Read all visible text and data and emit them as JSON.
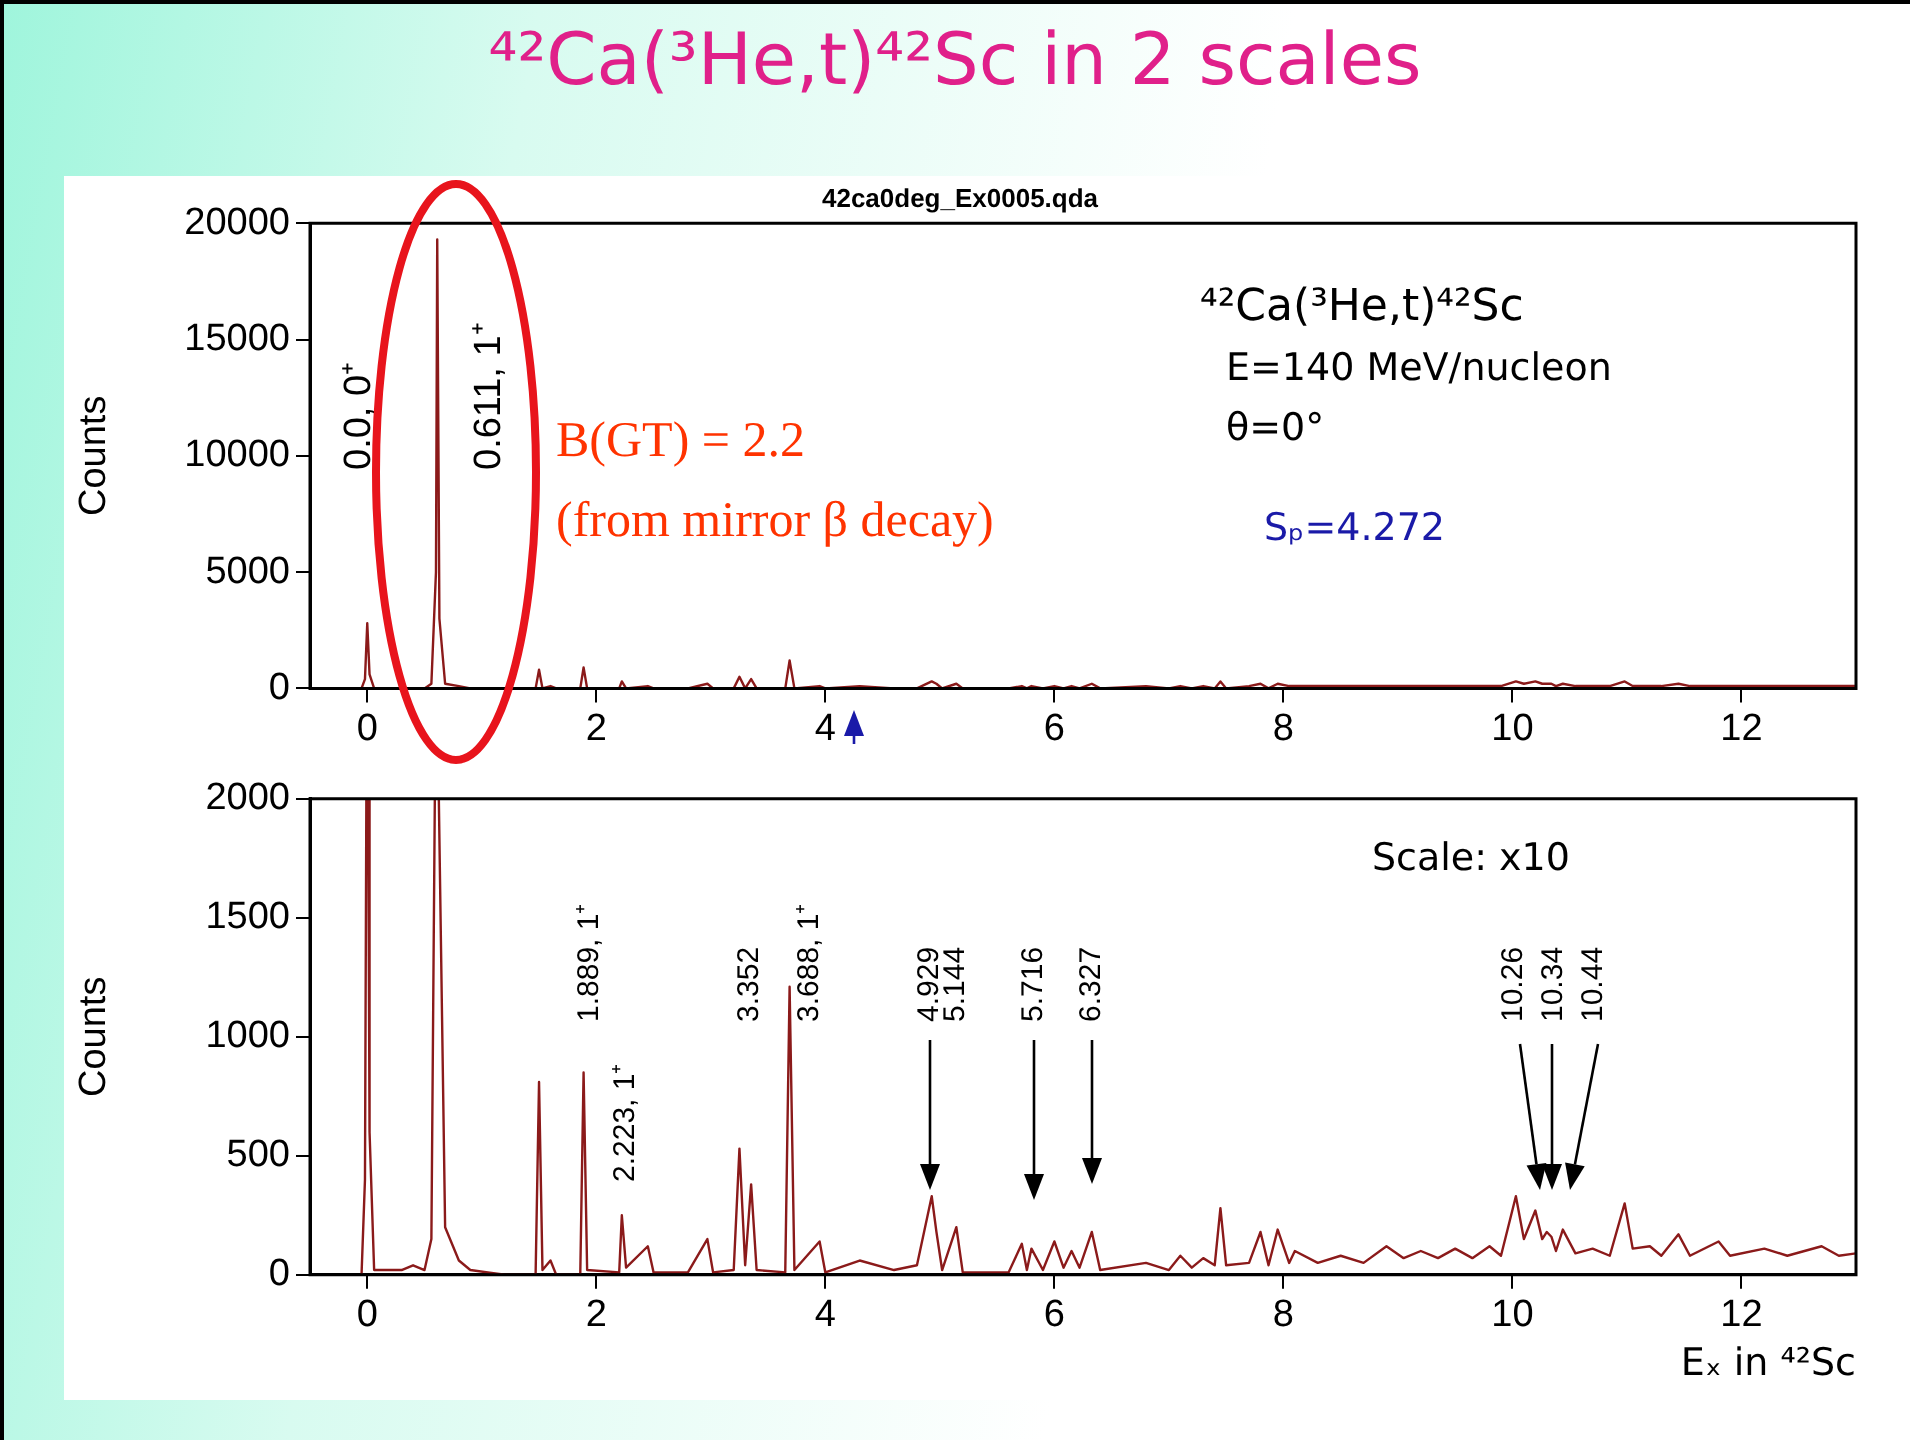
{
  "chart_data": [
    {
      "type": "line",
      "title": "⁴²Ca(³He,t)⁴²Sc in 2 scales",
      "subtitle": "42ca0deg_Ex0005.qda",
      "ylabel": "Counts",
      "xlim": [
        -0.5,
        13
      ],
      "xticks": [
        0,
        2,
        4,
        6,
        8,
        10,
        12
      ],
      "ylim": [
        0,
        20000
      ],
      "yticks": [
        0,
        5000,
        10000,
        15000,
        20000
      ],
      "series": [
        {
          "color": "#8b1a1a",
          "x": [
            -0.05,
            -0.02,
            0,
            0.02,
            0.06,
            0.3,
            0.4,
            0.5,
            0.56,
            0.6,
            0.611,
            0.63,
            0.68,
            0.8,
            0.9,
            1.2,
            1.47,
            1.5,
            1.53,
            1.6,
            1.65,
            1.86,
            1.889,
            1.92,
            2.2,
            2.223,
            2.26,
            2.45,
            2.5,
            2.8,
            2.97,
            3.02,
            3.2,
            3.25,
            3.3,
            3.352,
            3.4,
            3.65,
            3.688,
            3.73,
            3.95,
            4.0,
            4.3,
            4.6,
            4.8,
            4.929,
            4.97,
            5.02,
            5.144,
            5.2,
            5.6,
            5.716,
            5.76,
            5.8,
            5.9,
            6.0,
            6.08,
            6.15,
            6.22,
            6.327,
            6.4,
            6.8,
            7.0,
            7.1,
            7.2,
            7.3,
            7.4,
            7.45,
            7.5,
            7.7,
            7.8,
            7.87,
            7.95,
            8.05,
            8.1,
            8.3,
            8.5,
            8.7,
            8.9,
            9.05,
            9.2,
            9.35,
            9.5,
            9.65,
            9.8,
            9.9,
            10.03,
            10.1,
            10.2,
            10.26,
            10.3,
            10.34,
            10.38,
            10.44,
            10.55,
            10.7,
            10.85,
            10.98,
            11.05,
            11.2,
            11.3,
            11.45,
            11.55,
            11.8,
            11.9,
            12.2,
            12.4,
            12.7,
            12.85,
            13
          ],
          "values": [
            0,
            400,
            2800,
            600,
            0,
            0,
            0,
            0,
            200,
            5000,
            19300,
            3000,
            200,
            100,
            0,
            0,
            0,
            800,
            0,
            100,
            0,
            0,
            900,
            0,
            0,
            300,
            0,
            100,
            0,
            0,
            200,
            0,
            0,
            500,
            0,
            400,
            0,
            0,
            1200,
            0,
            100,
            0,
            100,
            0,
            0,
            300,
            200,
            0,
            200,
            0,
            0,
            100,
            0,
            100,
            0,
            100,
            0,
            100,
            0,
            200,
            0,
            100,
            0,
            100,
            0,
            100,
            0,
            300,
            0,
            100,
            200,
            0,
            200,
            100,
            100,
            100,
            100,
            100,
            100,
            100,
            100,
            100,
            100,
            100,
            100,
            100,
            300,
            200,
            300,
            200,
            200,
            200,
            100,
            200,
            100,
            100,
            100,
            300,
            100,
            100,
            100,
            200,
            100,
            100,
            100,
            100,
            100,
            100,
            100,
            100
          ]
        }
      ],
      "annotations": [
        "⁴²Ca(³He,t)⁴²Sc",
        "E=140 MeV/nucleon",
        "θ=0°",
        "B(GT) = 2.2",
        "(from mirror β decay)",
        "Sₚ=4.272",
        "0.0, 0⁺",
        "0.611, 1⁺"
      ]
    },
    {
      "type": "line",
      "xlabel": "Eₓ in ⁴²Sc",
      "ylabel": "Counts",
      "xlim": [
        -0.5,
        13
      ],
      "xticks": [
        0,
        2,
        4,
        6,
        8,
        10,
        12
      ],
      "ylim": [
        0,
        2000
      ],
      "yticks": [
        0,
        500,
        1000,
        1500,
        2000
      ],
      "series": [
        {
          "color": "#8b1a1a",
          "x": [
            -0.05,
            -0.02,
            -0.008,
            0,
            0.008,
            0.02,
            0.06,
            0.3,
            0.4,
            0.5,
            0.56,
            0.59,
            0.611,
            0.625,
            0.68,
            0.8,
            0.9,
            1.2,
            1.47,
            1.5,
            1.53,
            1.6,
            1.65,
            1.86,
            1.889,
            1.92,
            2.2,
            2.223,
            2.26,
            2.45,
            2.5,
            2.8,
            2.97,
            3.02,
            3.2,
            3.25,
            3.3,
            3.352,
            3.4,
            3.65,
            3.688,
            3.73,
            3.95,
            4.0,
            4.3,
            4.6,
            4.8,
            4.929,
            4.97,
            5.02,
            5.144,
            5.2,
            5.6,
            5.716,
            5.76,
            5.8,
            5.9,
            6.0,
            6.08,
            6.15,
            6.22,
            6.327,
            6.4,
            6.8,
            7.0,
            7.1,
            7.2,
            7.3,
            7.4,
            7.45,
            7.5,
            7.7,
            7.8,
            7.87,
            7.95,
            8.05,
            8.1,
            8.3,
            8.5,
            8.7,
            8.9,
            9.05,
            9.2,
            9.35,
            9.5,
            9.65,
            9.8,
            9.9,
            10.03,
            10.1,
            10.2,
            10.26,
            10.3,
            10.34,
            10.38,
            10.44,
            10.55,
            10.7,
            10.85,
            10.98,
            11.05,
            11.2,
            11.3,
            11.45,
            11.55,
            11.8,
            11.9,
            12.2,
            12.4,
            12.7,
            12.85,
            13
          ],
          "values": [
            0,
            400,
            2000,
            null,
            2000,
            600,
            20,
            20,
            40,
            20,
            150,
            2000,
            null,
            2000,
            200,
            60,
            20,
            0,
            0,
            810,
            20,
            60,
            0,
            0,
            850,
            20,
            10,
            250,
            30,
            120,
            10,
            10,
            150,
            10,
            20,
            530,
            40,
            380,
            20,
            10,
            1210,
            20,
            140,
            10,
            60,
            20,
            40,
            330,
            180,
            20,
            200,
            10,
            10,
            130,
            20,
            110,
            20,
            140,
            30,
            100,
            30,
            180,
            20,
            50,
            20,
            80,
            30,
            70,
            40,
            280,
            40,
            50,
            180,
            40,
            190,
            50,
            100,
            50,
            80,
            50,
            120,
            70,
            100,
            70,
            110,
            70,
            120,
            80,
            330,
            150,
            270,
            150,
            180,
            160,
            100,
            190,
            90,
            110,
            80,
            300,
            110,
            120,
            80,
            170,
            80,
            140,
            80,
            110,
            80,
            120,
            80,
            90
          ]
        }
      ],
      "annotations": [
        "Scale: x10",
        "1.889, 1⁺",
        "2.223, 1⁺",
        "3.352",
        "3.688, 1⁺",
        "4.929",
        "5.144",
        "5.716",
        "6.327",
        "10.26",
        "10.34",
        "10.44"
      ]
    }
  ]
}
